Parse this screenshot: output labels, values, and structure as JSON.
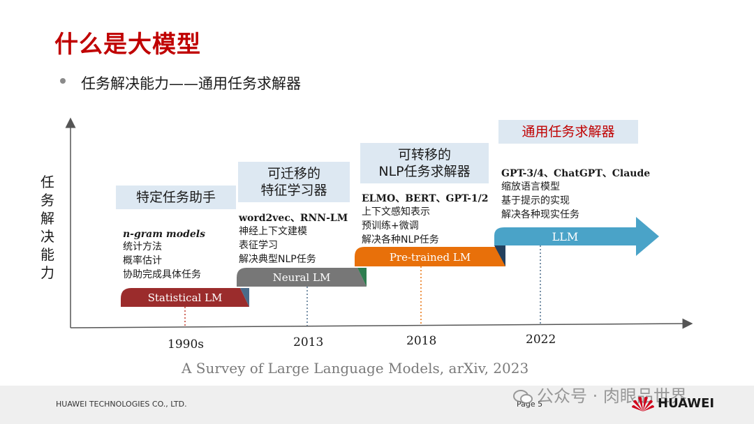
{
  "title": "什么是大模型",
  "bullet": "任务解决能力——通用任务求解器",
  "y_axis_label": [
    "任",
    "务",
    "解",
    "决",
    "能",
    "力"
  ],
  "stages": [
    {
      "box": [
        "特定任务助手"
      ],
      "bar": "Statistical LM",
      "year": "1990s",
      "head": "n-gram models",
      "lines": [
        "统计方法",
        "概率估计",
        "协助完成具体任务"
      ],
      "color": "#9b2c2c",
      "tab": "#4a6b8a"
    },
    {
      "box": [
        "可迁移的",
        "特征学习器"
      ],
      "bar": "Neural LM",
      "year": "2013",
      "head": "word2vec、RNN-LM",
      "lines": [
        "神经上下文建模",
        "表征学习",
        "解决典型NLP任务"
      ],
      "color": "#777777",
      "tab": "#2e7d4f"
    },
    {
      "box": [
        "可转移的",
        "NLP任务求解器"
      ],
      "bar": "Pre-trained LM",
      "year": "2018",
      "head": "ELMO、BERT、GPT-1/2",
      "lines": [
        "上下文感知表示",
        "预训练+微调",
        "解决各种NLP任务"
      ],
      "color": "#e8700a",
      "tab": "#23405e"
    },
    {
      "box": [
        "通用任务求解器"
      ],
      "bar": "LLM",
      "year": "2022",
      "head": "GPT-3/4、ChatGPT、Claude",
      "lines": [
        "缩放语言模型",
        "基于提示的实现",
        "解决各种现实任务"
      ],
      "color": "#4aa3c8",
      "tab": "#23405e"
    }
  ],
  "citation": "A Survey of Large Language Models, arXiv, 2023",
  "footer": {
    "company": "HUAWEI TECHNOLOGIES CO., LTD.",
    "page": "Page 5",
    "watermark": "公众号 · 肉眼品世界",
    "brand": "HUAWEI"
  },
  "colors": {
    "title": "#c00000",
    "box": "#dde8f2"
  }
}
